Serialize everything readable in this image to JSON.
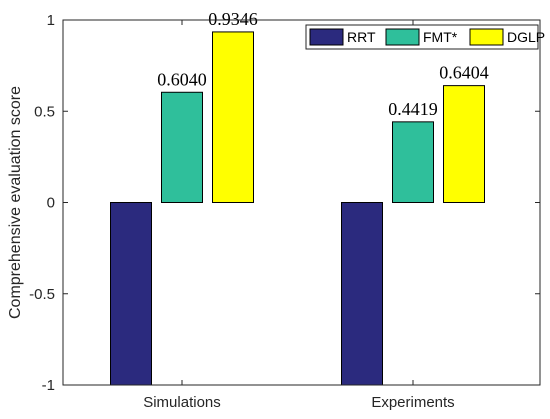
{
  "chart_data": {
    "type": "bar",
    "categories": [
      "Simulations",
      "Experiments"
    ],
    "series": [
      {
        "name": "RRT",
        "values": [
          -1,
          -1
        ],
        "color": "#2b2a7e"
      },
      {
        "name": "FMT*",
        "values": [
          0.604,
          0.4419
        ],
        "color": "#2fbf9b"
      },
      {
        "name": "DGLP",
        "values": [
          0.9346,
          0.6404
        ],
        "color": "#ffff00"
      }
    ],
    "data_labels": [
      {
        "category": 0,
        "series": 1,
        "text": "0.6040"
      },
      {
        "category": 0,
        "series": 2,
        "text": "0.9346"
      },
      {
        "category": 1,
        "series": 1,
        "text": "0.4419"
      },
      {
        "category": 1,
        "series": 2,
        "text": "0.6404"
      }
    ],
    "title": "",
    "xlabel": "",
    "ylabel": "Comprehensive evaluation score",
    "ylim": [
      -1,
      1
    ],
    "yticks": [
      -1,
      -0.5,
      0,
      0.5,
      1
    ],
    "ytick_labels": [
      "-1",
      "-0.5",
      "0",
      "0.5",
      "1"
    ],
    "grid": false,
    "legend": "top-right, horizontal"
  }
}
